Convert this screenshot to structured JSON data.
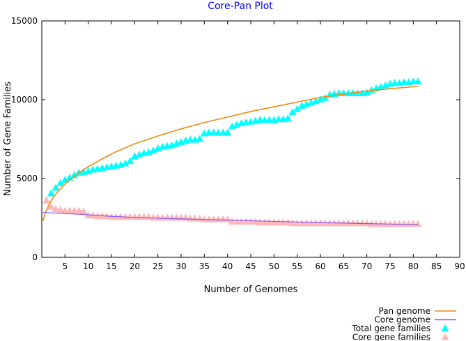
{
  "chart_data": {
    "type": "scatter",
    "title": "Core-Pan Plot",
    "xlabel": "Number of Genomes",
    "ylabel": "Number of Gene Families",
    "xlim": [
      0,
      90
    ],
    "ylim": [
      0,
      15000
    ],
    "x_ticks": [
      5,
      10,
      15,
      20,
      25,
      30,
      35,
      40,
      45,
      50,
      55,
      60,
      65,
      70,
      75,
      80,
      85,
      90
    ],
    "y_ticks": [
      0,
      5000,
      10000,
      15000
    ],
    "grid": false,
    "legend_position": "bottom-right",
    "colors": {
      "title": "#0000ff",
      "pan_genome": "#f08a0a",
      "core_genome": "#8a5cf0",
      "total_gene_families": "#00ffff",
      "core_gene_families": "#ffb6b6"
    },
    "series": [
      {
        "name": "Total gene families",
        "kind": "points",
        "marker": "triangle",
        "x": [
          1,
          2,
          3,
          4,
          5,
          6,
          7,
          8,
          9,
          10,
          11,
          12,
          13,
          14,
          15,
          16,
          17,
          18,
          19,
          20,
          21,
          22,
          23,
          24,
          25,
          26,
          27,
          28,
          29,
          30,
          31,
          32,
          33,
          34,
          35,
          36,
          37,
          38,
          39,
          40,
          41,
          42,
          43,
          44,
          45,
          46,
          47,
          48,
          49,
          50,
          51,
          52,
          53,
          54,
          55,
          56,
          57,
          58,
          59,
          60,
          61,
          62,
          63,
          64,
          65,
          66,
          67,
          68,
          69,
          70,
          71,
          72,
          73,
          74,
          75,
          76,
          77,
          78,
          79,
          80,
          81
        ],
        "y": [
          3600,
          4050,
          4400,
          4700,
          4900,
          5050,
          5200,
          5350,
          5400,
          5450,
          5550,
          5600,
          5650,
          5700,
          5750,
          5800,
          5850,
          5950,
          6100,
          6400,
          6500,
          6600,
          6650,
          6750,
          6900,
          7000,
          7050,
          7100,
          7200,
          7300,
          7400,
          7450,
          7450,
          7500,
          7850,
          7900,
          7900,
          7900,
          7900,
          7900,
          8300,
          8400,
          8500,
          8550,
          8600,
          8650,
          8700,
          8700,
          8700,
          8700,
          8750,
          8750,
          8800,
          9200,
          9400,
          9600,
          9700,
          9800,
          9900,
          10000,
          10100,
          10300,
          10350,
          10400,
          10400,
          10400,
          10400,
          10400,
          10400,
          10450,
          10600,
          10700,
          10800,
          10900,
          11000,
          11050,
          11050,
          11100,
          11100,
          11150,
          11150
        ]
      },
      {
        "name": "Core gene families",
        "kind": "points",
        "marker": "triangle",
        "x": [
          1,
          2,
          3,
          4,
          5,
          6,
          7,
          8,
          9,
          10,
          11,
          12,
          13,
          14,
          15,
          16,
          17,
          18,
          19,
          20,
          21,
          22,
          23,
          24,
          25,
          26,
          27,
          28,
          29,
          30,
          31,
          32,
          33,
          34,
          35,
          36,
          37,
          38,
          39,
          40,
          41,
          42,
          43,
          44,
          45,
          46,
          47,
          48,
          49,
          50,
          51,
          52,
          53,
          54,
          55,
          56,
          57,
          58,
          59,
          60,
          61,
          62,
          63,
          64,
          65,
          66,
          67,
          68,
          69,
          70,
          71,
          72,
          73,
          74,
          75,
          76,
          77,
          78,
          79,
          80,
          81
        ],
        "y": [
          3600,
          3200,
          3050,
          3000,
          2950,
          2950,
          2950,
          2950,
          2900,
          2650,
          2650,
          2600,
          2600,
          2600,
          2550,
          2550,
          2550,
          2550,
          2550,
          2550,
          2550,
          2550,
          2550,
          2500,
          2500,
          2500,
          2500,
          2500,
          2500,
          2500,
          2500,
          2450,
          2450,
          2450,
          2400,
          2400,
          2400,
          2400,
          2400,
          2400,
          2250,
          2250,
          2250,
          2250,
          2250,
          2250,
          2200,
          2200,
          2200,
          2200,
          2200,
          2200,
          2200,
          2150,
          2150,
          2150,
          2150,
          2150,
          2150,
          2150,
          2150,
          2150,
          2150,
          2150,
          2150,
          2150,
          2150,
          2150,
          2150,
          2150,
          2100,
          2100,
          2100,
          2100,
          2100,
          2100,
          2100,
          2100,
          2100,
          2100,
          2100
        ]
      },
      {
        "name": "Pan genome",
        "kind": "line",
        "x": [
          0.2,
          1,
          2,
          3,
          4,
          5,
          6,
          8,
          10,
          13,
          16,
          20,
          25,
          30,
          35,
          40,
          45,
          50,
          55,
          60,
          65,
          70,
          75,
          81
        ],
        "y": [
          2300,
          3000,
          3600,
          4000,
          4350,
          4650,
          4900,
          5350,
          5750,
          6250,
          6700,
          7200,
          7700,
          8150,
          8550,
          8900,
          9250,
          9550,
          9850,
          10150,
          10350,
          10550,
          10700,
          10850
        ]
      },
      {
        "name": "Core genome",
        "kind": "line",
        "x": [
          0.2,
          2,
          5,
          10,
          15,
          20,
          25,
          30,
          35,
          40,
          45,
          50,
          55,
          60,
          65,
          70,
          75,
          81
        ],
        "y": [
          2850,
          2820,
          2780,
          2700,
          2600,
          2530,
          2480,
          2440,
          2400,
          2360,
          2320,
          2280,
          2240,
          2200,
          2170,
          2140,
          2110,
          2080
        ]
      }
    ]
  }
}
